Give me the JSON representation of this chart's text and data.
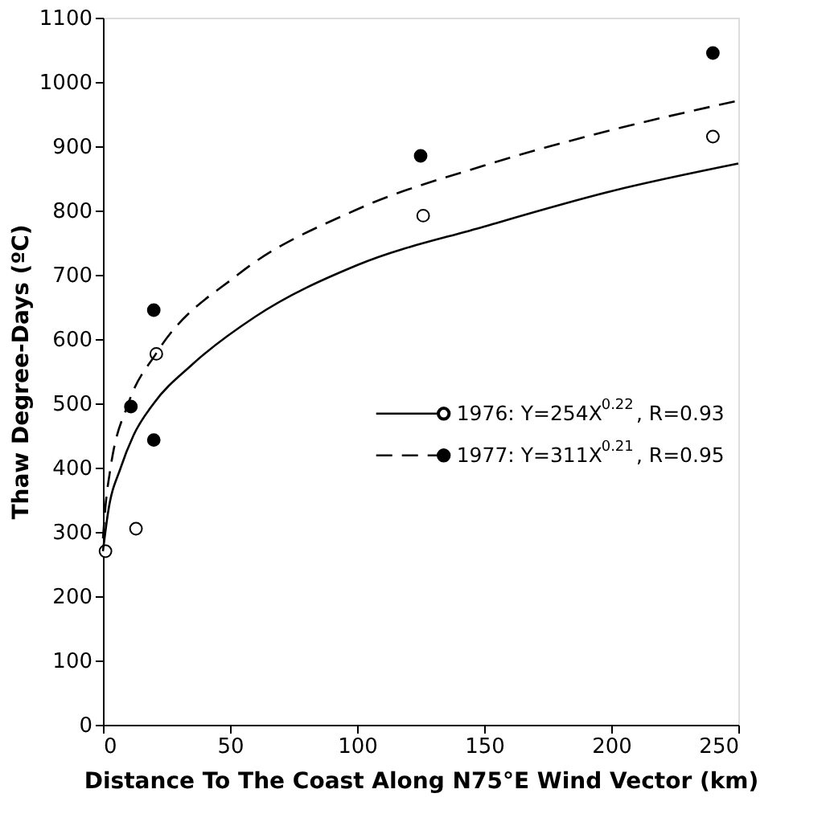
{
  "chart_data": {
    "type": "line",
    "xlabel": "Distance To The Coast Along N75°E Wind Vector (km)",
    "ylabel": "Thaw Degree-Days (ºC)",
    "xlim": [
      0,
      250
    ],
    "xticks": [
      0,
      50,
      100,
      150,
      200,
      250
    ],
    "ylim": [
      0,
      1100
    ],
    "yticks": [
      0,
      100,
      200,
      300,
      400,
      500,
      600,
      700,
      800,
      900,
      1000,
      1100
    ],
    "grid": false,
    "legend": "right",
    "marker": "circle",
    "series": [
      {
        "name": "1976: Y=254X$^{0.22}$, R=0.93",
        "type": "scatter",
        "color": "#ffffff",
        "x": [
          1,
          13,
          21,
          126,
          240
        ],
        "values": [
          270,
          305,
          577,
          792,
          915
        ]
      },
      {
        "name": "1977: Y=311X$^{0.21}$, R=0.95",
        "type": "scatter",
        "color": "#000000",
        "x": [
          11,
          20,
          20,
          125,
          240
        ],
        "values": [
          495,
          645,
          443,
          885,
          1045
        ]
      },
      {
        "line_style": "solid",
        "marker": "none",
        "color": "#000000",
        "x": [
          0,
          2,
          7,
          12,
          20,
          35,
          60,
          100,
          150,
          200,
          250
        ],
        "values": [
          270,
          330,
          400,
          450,
          500,
          560,
          635,
          715,
          775,
          830,
          873
        ]
      },
      {
        "line_style": "dashed",
        "marker": "none",
        "color": "#000000",
        "x": [
          0,
          1,
          3,
          10,
          21,
          53,
          99,
          150,
          200,
          250
        ],
        "values": [
          290,
          340,
          400,
          500,
          578,
          700,
          800,
          870,
          925,
          971
        ]
      }
    ]
  }
}
